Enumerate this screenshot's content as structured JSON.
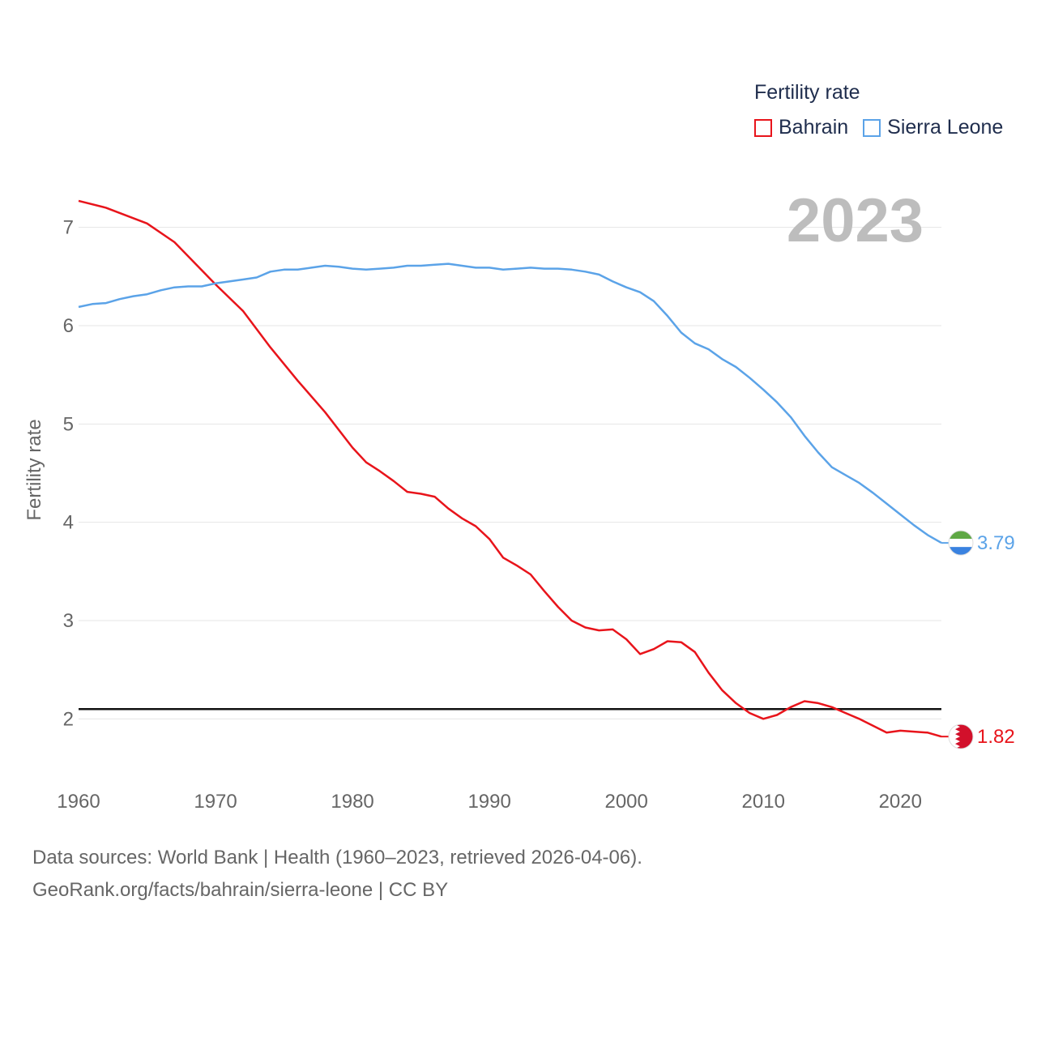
{
  "legend": {
    "title": "Fertility rate",
    "items": [
      {
        "label": "Bahrain",
        "color": "#e8141b"
      },
      {
        "label": "Sierra Leone",
        "color": "#5ba3e8"
      }
    ]
  },
  "footer": {
    "line1": "Data sources: World Bank | Health (1960–2023, retrieved 2026-04-06).",
    "line2": "GeoRank.org/facts/bahrain/sierra-leone | CC BY"
  },
  "chart_data": {
    "type": "line",
    "ylabel": "Fertility rate",
    "year_label": "2023",
    "xlim": [
      1960,
      2023
    ],
    "ylim": [
      1.5,
      7.5
    ],
    "xticks": [
      1960,
      1970,
      1980,
      1990,
      2000,
      2010,
      2020
    ],
    "yticks": [
      2,
      3,
      4,
      5,
      6,
      7
    ],
    "reference_line": 2.1,
    "series": [
      {
        "name": "Bahrain",
        "color": "#e8141b",
        "end_label": "1.82",
        "flag": "bahrain-flag",
        "x": [
          1960,
          1962,
          1965,
          1967,
          1970,
          1972,
          1974,
          1976,
          1978,
          1980,
          1981,
          1982,
          1983,
          1984,
          1985,
          1986,
          1987,
          1988,
          1989,
          1990,
          1991,
          1992,
          1993,
          1994,
          1995,
          1996,
          1997,
          1998,
          1999,
          2000,
          2001,
          2002,
          2003,
          2004,
          2005,
          2006,
          2007,
          2008,
          2009,
          2010,
          2011,
          2012,
          2013,
          2014,
          2015,
          2016,
          2017,
          2018,
          2019,
          2020,
          2021,
          2022,
          2023
        ],
        "values": [
          7.27,
          7.2,
          7.04,
          6.85,
          6.42,
          6.15,
          5.78,
          5.44,
          5.12,
          4.76,
          4.61,
          4.52,
          4.42,
          4.31,
          4.29,
          4.26,
          4.14,
          4.04,
          3.96,
          3.83,
          3.64,
          3.56,
          3.47,
          3.3,
          3.14,
          3.0,
          2.93,
          2.9,
          2.91,
          2.81,
          2.66,
          2.71,
          2.79,
          2.78,
          2.68,
          2.47,
          2.29,
          2.16,
          2.06,
          2.0,
          2.04,
          2.12,
          2.18,
          2.16,
          2.12,
          2.06,
          2.0,
          1.93,
          1.86,
          1.88,
          1.87,
          1.86,
          1.82
        ]
      },
      {
        "name": "Sierra Leone",
        "color": "#5ba3e8",
        "end_label": "3.79",
        "flag": "sierra-leone-flag",
        "x": [
          1960,
          1961,
          1962,
          1963,
          1964,
          1965,
          1966,
          1967,
          1968,
          1969,
          1970,
          1971,
          1972,
          1973,
          1974,
          1975,
          1976,
          1977,
          1978,
          1979,
          1980,
          1981,
          1982,
          1983,
          1984,
          1985,
          1986,
          1987,
          1988,
          1989,
          1990,
          1991,
          1992,
          1993,
          1994,
          1995,
          1996,
          1997,
          1998,
          1999,
          2000,
          2001,
          2002,
          2003,
          2004,
          2005,
          2006,
          2007,
          2008,
          2009,
          2010,
          2011,
          2012,
          2013,
          2014,
          2015,
          2016,
          2017,
          2018,
          2019,
          2020,
          2021,
          2022,
          2023
        ],
        "values": [
          6.19,
          6.22,
          6.23,
          6.27,
          6.3,
          6.32,
          6.36,
          6.39,
          6.4,
          6.4,
          6.43,
          6.45,
          6.47,
          6.49,
          6.55,
          6.57,
          6.57,
          6.59,
          6.61,
          6.6,
          6.58,
          6.57,
          6.58,
          6.59,
          6.61,
          6.61,
          6.62,
          6.63,
          6.61,
          6.59,
          6.59,
          6.57,
          6.58,
          6.59,
          6.58,
          6.58,
          6.57,
          6.55,
          6.52,
          6.45,
          6.39,
          6.34,
          6.25,
          6.1,
          5.93,
          5.82,
          5.76,
          5.66,
          5.58,
          5.47,
          5.35,
          5.22,
          5.07,
          4.88,
          4.71,
          4.56,
          4.48,
          4.4,
          4.3,
          4.19,
          4.08,
          3.97,
          3.87,
          3.79
        ]
      }
    ]
  }
}
